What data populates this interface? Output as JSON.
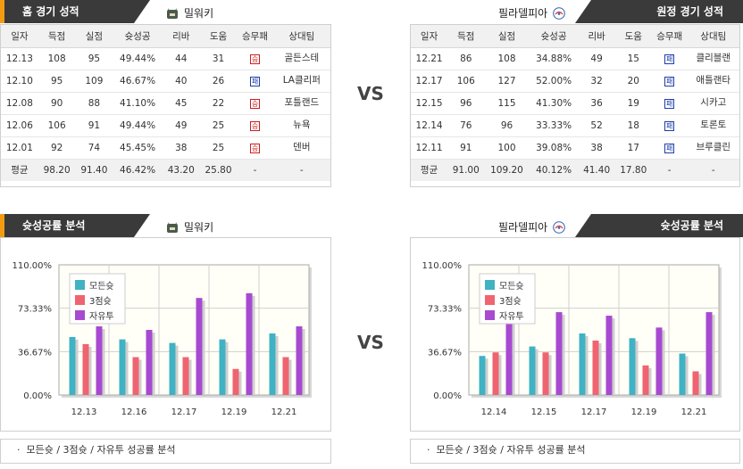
{
  "home": {
    "tab_title": "홈 경기 성적",
    "team_name": "밀워키",
    "headers": [
      "일자",
      "득점",
      "실점",
      "슛성공",
      "리바",
      "도움",
      "승무패",
      "상대팀"
    ],
    "rows": [
      [
        "12.13",
        "108",
        "95",
        "49.44%",
        "44",
        "31",
        "승",
        "골든스테"
      ],
      [
        "12.10",
        "95",
        "109",
        "46.67%",
        "40",
        "26",
        "패",
        "LA클리퍼"
      ],
      [
        "12.08",
        "90",
        "88",
        "41.10%",
        "45",
        "22",
        "승",
        "포틀랜드"
      ],
      [
        "12.06",
        "106",
        "91",
        "49.44%",
        "49",
        "25",
        "승",
        "뉴욕"
      ],
      [
        "12.01",
        "92",
        "74",
        "45.45%",
        "38",
        "25",
        "승",
        "덴버"
      ]
    ],
    "avg": [
      "평균",
      "98.20",
      "91.40",
      "46.42%",
      "43.20",
      "25.80",
      "-",
      "-"
    ]
  },
  "away": {
    "tab_title": "원정 경기 성적",
    "team_name": "필라델피아",
    "headers": [
      "일자",
      "득점",
      "실점",
      "슛성공",
      "리바",
      "도움",
      "승무패",
      "상대팀"
    ],
    "rows": [
      [
        "12.21",
        "86",
        "108",
        "34.88%",
        "49",
        "15",
        "패",
        "클리블랜"
      ],
      [
        "12.17",
        "106",
        "127",
        "52.00%",
        "32",
        "20",
        "패",
        "애틀랜타"
      ],
      [
        "12.15",
        "96",
        "115",
        "41.30%",
        "36",
        "19",
        "패",
        "시카고"
      ],
      [
        "12.14",
        "76",
        "96",
        "33.33%",
        "52",
        "18",
        "패",
        "토론토"
      ],
      [
        "12.11",
        "91",
        "100",
        "39.08%",
        "38",
        "17",
        "패",
        "브루클린"
      ]
    ],
    "avg": [
      "평균",
      "91.00",
      "109.20",
      "40.12%",
      "41.40",
      "17.80",
      "-",
      "-"
    ]
  },
  "vs_label": "VS",
  "chart_left_tab": "슛성공률 분석",
  "chart_left_team": "밀워키",
  "chart_right_tab": "슛성공률 분석",
  "chart_right_team": "필라델피아",
  "chart_footnote": "모든슛 / 3점슛 / 자유투 성공률 분석",
  "colors": {
    "all": "#3fb2c4",
    "three": "#ef6470",
    "ft": "#a74ad1",
    "win": "#cc1e1e",
    "loss": "#1e3ea8"
  },
  "chart_data": [
    {
      "type": "bar",
      "categories": [
        "12.13",
        "12.16",
        "12.17",
        "12.19",
        "12.21"
      ],
      "yticks": [
        "110.00%",
        "73.33%",
        "36.67%",
        "0.00%"
      ],
      "ylim": [
        0,
        110
      ],
      "series": [
        {
          "name": "모든슛",
          "values": [
            49,
            47,
            44,
            47,
            52
          ]
        },
        {
          "name": "3점슛",
          "values": [
            43,
            32,
            32,
            22,
            32
          ]
        },
        {
          "name": "자유투",
          "values": [
            58,
            55,
            82,
            86,
            58
          ]
        }
      ],
      "legend": "top-left"
    },
    {
      "type": "bar",
      "categories": [
        "12.14",
        "12.15",
        "12.17",
        "12.19",
        "12.21"
      ],
      "yticks": [
        "110.00%",
        "73.33%",
        "36.67%",
        "0.00%"
      ],
      "ylim": [
        0,
        110
      ],
      "series": [
        {
          "name": "모든슛",
          "values": [
            33,
            41,
            52,
            48,
            35
          ]
        },
        {
          "name": "3점슛",
          "values": [
            36,
            36,
            46,
            25,
            20
          ]
        },
        {
          "name": "자유투",
          "values": [
            63,
            70,
            67,
            57,
            70
          ]
        }
      ],
      "legend": "top-left"
    }
  ]
}
